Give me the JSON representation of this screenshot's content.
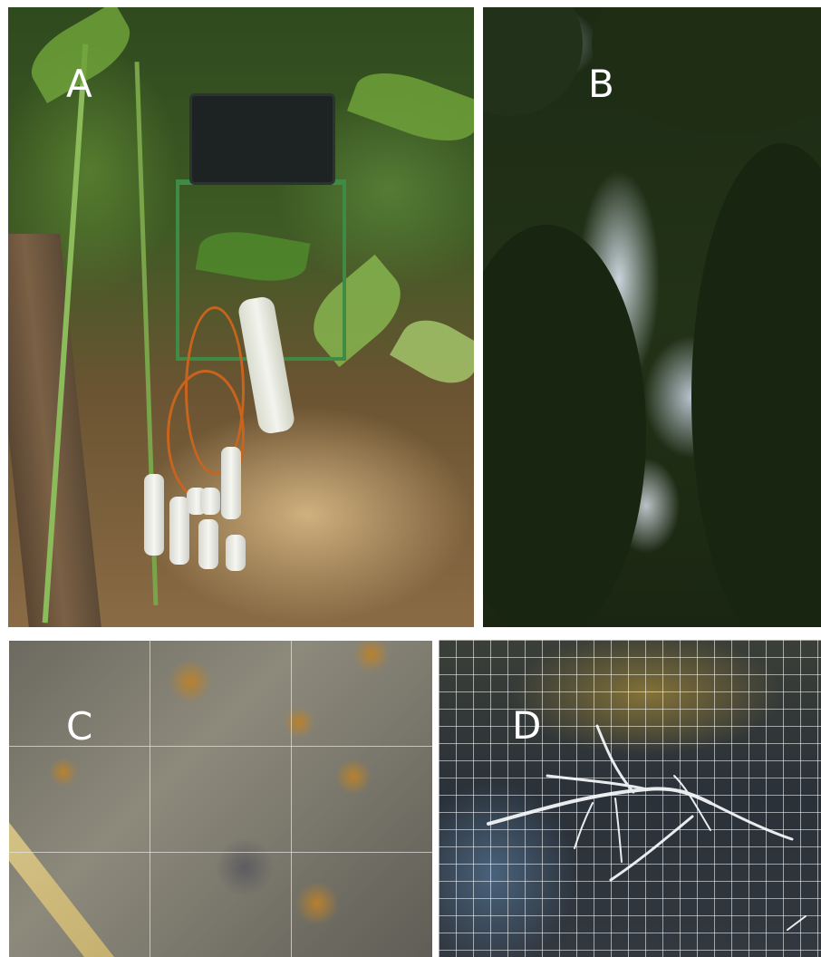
{
  "panels": {
    "a": {
      "label": "A"
    },
    "b": {
      "label": "B"
    },
    "c": {
      "label": "C"
    },
    "d": {
      "label": "D"
    }
  },
  "colors": {
    "label": "#ffffff",
    "stand": "#3f8b45",
    "cable": "#c8641d",
    "pvc": "#f3f4ee",
    "soil": "#8a6b45",
    "canopy": "#1d2b15"
  }
}
